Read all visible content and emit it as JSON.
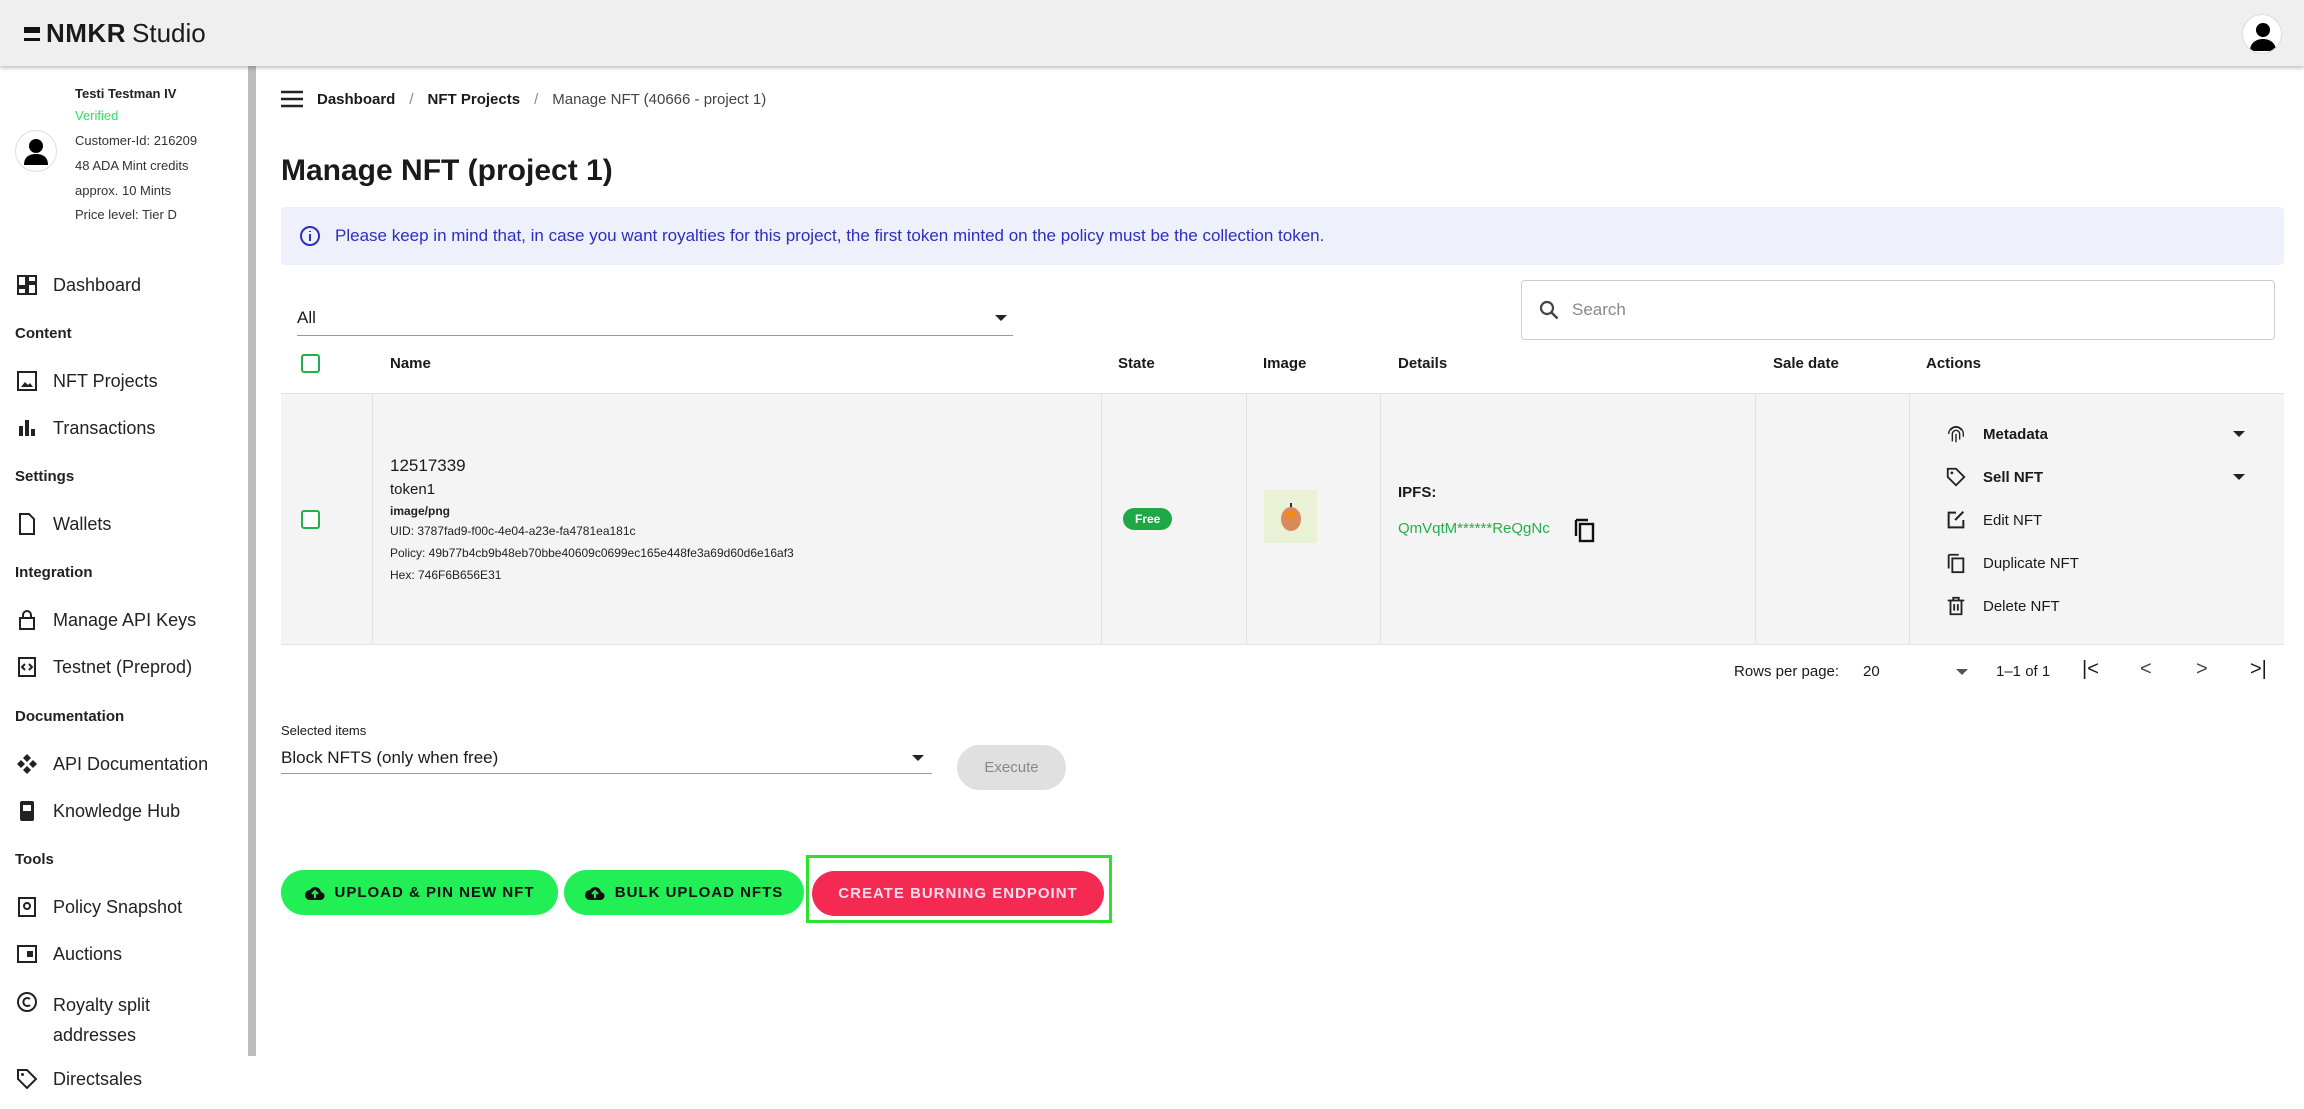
{
  "app": {
    "logo_bold": "NMKR",
    "logo_light": "Studio"
  },
  "profile": {
    "name": "Testi Testman IV",
    "status": "Verified",
    "customer_id": "Customer-Id: 216209",
    "credits": "48 ADA Mint credits",
    "mints": "approx. 10 Mints",
    "price_level": "Price level: Tier D"
  },
  "sidebar": {
    "dashboard": "Dashboard",
    "content": "Content",
    "nft_projects": "NFT Projects",
    "transactions": "Transactions",
    "settings": "Settings",
    "wallets": "Wallets",
    "integration": "Integration",
    "api_keys": "Manage API Keys",
    "testnet": "Testnet (Preprod)",
    "documentation": "Documentation",
    "api_doc": "API Documentation",
    "knowledge": "Knowledge Hub",
    "tools": "Tools",
    "policy": "Policy Snapshot",
    "auctions": "Auctions",
    "royalty1": "Royalty split",
    "royalty2": "addresses",
    "directsales": "Directsales"
  },
  "breadcrumb": [
    "Dashboard",
    "NFT Projects",
    "Manage NFT (40666 - project 1)"
  ],
  "page_title": "Manage NFT (project 1)",
  "banner": "Please keep in mind that, in case you want royalties for this project, the first token minted on the policy must be the collection token.",
  "filter": {
    "value": "All"
  },
  "search": {
    "placeholder": "Search"
  },
  "table": {
    "headers": [
      "Name",
      "State",
      "Image",
      "Details",
      "Sale date",
      "Actions"
    ],
    "row": {
      "id": "12517339",
      "name": "token1",
      "mime": "image/png",
      "uid": "UID: 3787fad9-f00c-4e04-a23e-fa4781ea181c",
      "policy": "Policy: 49b77b4cb9b48eb70bbe40609c0699ec165e448fe3a69d60d6e16af3",
      "hex": "Hex: 746F6B656E31",
      "state": "Free",
      "ipfs_label": "IPFS:",
      "ipfs": "QmVqtM******ReQgNc",
      "sale_date": "",
      "actions": [
        "Metadata",
        "Sell NFT",
        "Edit NFT",
        "Duplicate NFT",
        "Delete NFT"
      ]
    }
  },
  "pagination": {
    "label": "Rows per page:",
    "rows": "20",
    "range": "1–1 of 1"
  },
  "bulk": {
    "label": "Selected items",
    "value": "Block NFTS (only when free)",
    "execute": "Execute"
  },
  "buttons": {
    "upload": "UPLOAD & PIN NEW NFT",
    "bulk_upload": "BULK UPLOAD NFTS",
    "burn": "CREATE BURNING ENDPOINT"
  },
  "colors": {
    "green": "#22ef55",
    "red": "#f42a52",
    "badge": "#1fa846",
    "banner_text": "#2b2ebf",
    "highlight": "#2fe02f"
  }
}
